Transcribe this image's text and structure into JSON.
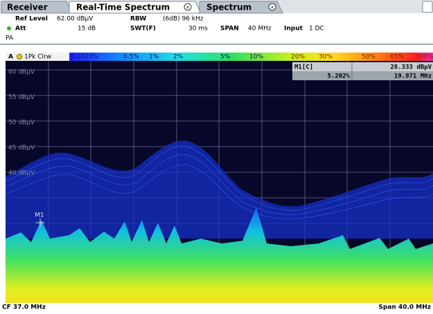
{
  "tabs": [
    "Receiver",
    "Real-Time Spectrum",
    "Spectrum"
  ],
  "settings": {
    "ref_level": {
      "label": "Ref Level",
      "value": "62.00 dBµV"
    },
    "att": {
      "label": "Att",
      "value": "15 dB"
    },
    "rbw": {
      "label": "RBW",
      "value": "(6dB) 96 kHz"
    },
    "swt": {
      "label": "SWT(F)",
      "value": "30 ms"
    },
    "span": {
      "label": "SPAN",
      "value": "40 MHz"
    },
    "input": {
      "label": "Input",
      "value": "1 DC"
    },
    "preamp": "PA"
  },
  "trace": {
    "window": "A",
    "mode": "1Pk Clrw"
  },
  "color_scale": [
    "0.0103%",
    "0.5%",
    "1%",
    "2%",
    "5%",
    "10%",
    "20%",
    "30%",
    "50%",
    "65%",
    "100%"
  ],
  "plot": {
    "y_labels": [
      "60 dBµV",
      "55 dBµV",
      "50 dBµV",
      "45 dBµV",
      "40 dBµV"
    ],
    "marker": "M1"
  },
  "marker_table": {
    "name": "M1[C]",
    "level": "28.333 dBµV",
    "percent": "5.202%",
    "frequency": "19.971 MHz"
  },
  "footer": {
    "center": "CF 37.0 MHz",
    "span": "Span 40.0 MHz"
  }
}
